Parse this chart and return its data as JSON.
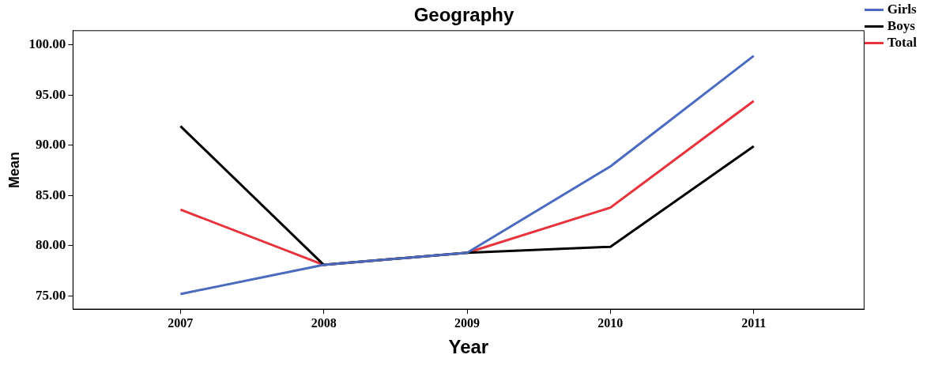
{
  "chart_data": {
    "type": "line",
    "title": "Geography",
    "xlabel": "Year",
    "ylabel": "Mean",
    "x": [
      2007,
      2008,
      2009,
      2010,
      2011
    ],
    "series": [
      {
        "name": "Girls",
        "color": "#4a6bbf",
        "values": [
          75.2,
          78.1,
          79.3,
          87.9,
          98.9
        ]
      },
      {
        "name": "Boys",
        "color": "#000000",
        "values": [
          91.9,
          78.1,
          79.3,
          79.9,
          89.9
        ]
      },
      {
        "name": "Total",
        "color": "#e8323c",
        "values": [
          83.6,
          78.1,
          79.3,
          83.8,
          94.4
        ]
      }
    ],
    "xlim": [
      2006.25,
      2011.77
    ],
    "xticks": [
      2007,
      2008,
      2009,
      2010,
      2011
    ],
    "ylim": [
      73.7,
      101.4
    ],
    "yticks": [
      {
        "value": 75,
        "label": "75.00"
      },
      {
        "value": 80,
        "label": "80.00"
      },
      {
        "value": 85,
        "label": "85.00"
      },
      {
        "value": 90,
        "label": "90.00"
      },
      {
        "value": 95,
        "label": "95.00"
      },
      {
        "value": 100,
        "label": "100.00"
      }
    ],
    "grid": false,
    "legend": "top right",
    "marker": "none",
    "line_style": "solid"
  }
}
